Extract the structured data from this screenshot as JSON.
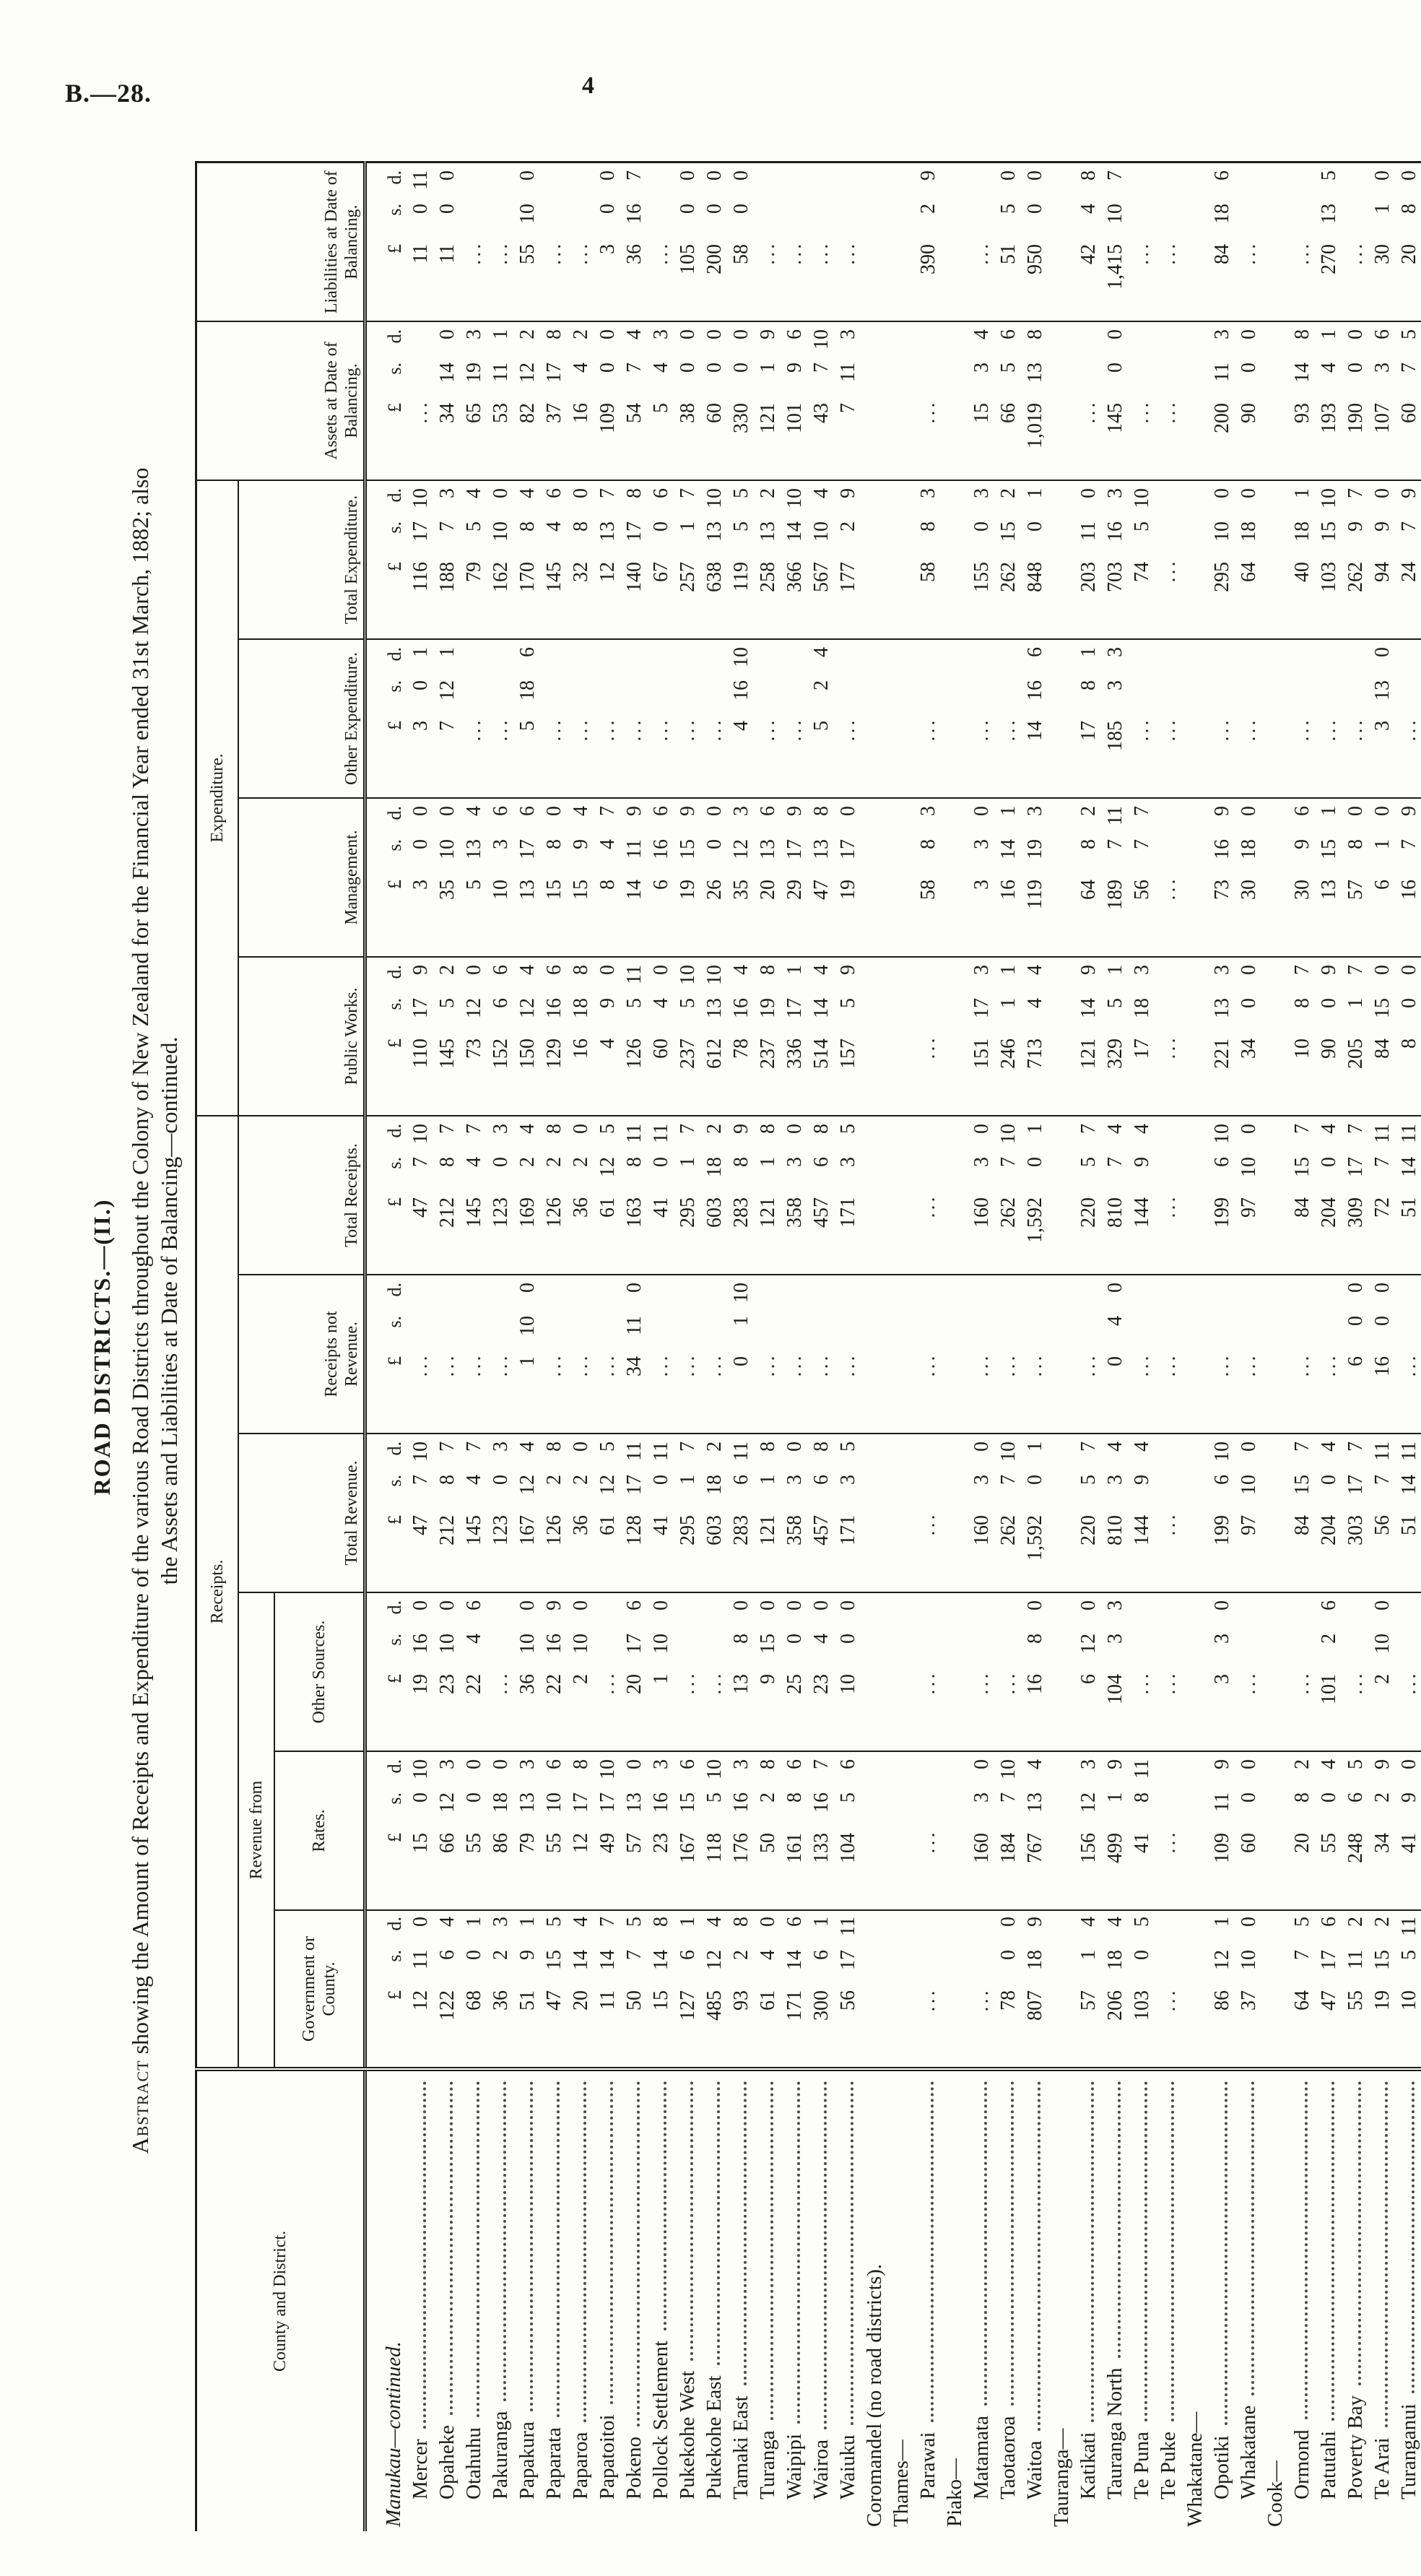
{
  "page": {
    "doc_ref": "B.—28.",
    "page_number": "4"
  },
  "heading": "ROAD DISTRICTS.—(II.)",
  "title": {
    "line1_smallcaps_word": "Abstract",
    "line1_rest": " showing the Amount of Receipts and Expenditure of the various Road Districts throughout the Colony of New Zealand for the Financial Year ended 31st March, 1882; also",
    "line2": "the Assets and Liabilities at Date of Balancing—continued."
  },
  "table": {
    "currency_symbols": [
      "£",
      "s.",
      "d."
    ],
    "empty_marker": "...",
    "headers": {
      "county": "County and District.",
      "receipts_group": "Receipts.",
      "expenditure_group": "Expenditure.",
      "revenue_from": "Revenue from",
      "columns": [
        "Government or County.",
        "Rates.",
        "Other Sources.",
        "Total Revenue.",
        "Receipts not Revenue.",
        "Total Receipts.",
        "Public Works.",
        "Management.",
        "Other Expenditure.",
        "Total Expenditure.",
        "Assets at Date of Balancing.",
        "Liabilities at Date of Balancing."
      ]
    },
    "rows": [
      {
        "type": "group",
        "label": "Manukau—continued.",
        "italic": true,
        "show_currency_row": true
      },
      {
        "type": "district",
        "name": "Mercer",
        "values": [
          "12 11 0",
          "15 0 10",
          "19 16 0",
          "47 7 10",
          "",
          "47 7 10",
          "110 17 9",
          "3 0 0",
          "3 0 1",
          "116 17 10",
          "",
          "11 0 11"
        ]
      },
      {
        "type": "district",
        "name": "Opaheke",
        "values": [
          "122 6 4",
          "66 12 3",
          "23 10 0",
          "212 8 7",
          "",
          "212 8 7",
          "145 5 2",
          "35 10 0",
          "7 12 1",
          "188 7 3",
          "34 14 0",
          "11 0 0"
        ]
      },
      {
        "type": "district",
        "name": "Otahuhu",
        "values": [
          "68 0 1",
          "55 0 0",
          "22 4 6",
          "145 4 7",
          "",
          "145 4 7",
          "73 12 0",
          "5 13 4",
          "",
          "79 5 4",
          "65 19 3",
          ""
        ]
      },
      {
        "type": "district",
        "name": "Pakuranga",
        "values": [
          "36 2 3",
          "86 18 0",
          "",
          "123 0 3",
          "",
          "123 0 3",
          "152 6 6",
          "10 3 6",
          "",
          "162 10 0",
          "53 11 1",
          ""
        ]
      },
      {
        "type": "district",
        "name": "Papakura",
        "values": [
          "51 9 1",
          "79 13 3",
          "36 10 0",
          "167 12 4",
          "1 10 0",
          "169 2 4",
          "150 12 4",
          "13 17 6",
          "5 18 6",
          "170 8 4",
          "82 12 2",
          "55 10 0"
        ]
      },
      {
        "type": "district",
        "name": "Paparata",
        "values": [
          "47 15 5",
          "55 10 6",
          "22 16 9",
          "126 2 8",
          "",
          "126 2 8",
          "129 16 6",
          "15 8 0",
          "",
          "145 4 6",
          "37 17 8",
          ""
        ]
      },
      {
        "type": "district",
        "name": "Paparoa",
        "values": [
          "20 14 4",
          "12 17 8",
          "2 10 0",
          "36 2 0",
          "",
          "36 2 0",
          "16 18 8",
          "15 9 4",
          "",
          "32 8 0",
          "16 4 2",
          ""
        ]
      },
      {
        "type": "district",
        "name": "Papatoitoi",
        "values": [
          "11 14 7",
          "49 17 10",
          "",
          "61 12 5",
          "",
          "61 12 5",
          "4 9 0",
          "8 4 7",
          "",
          "12 13 7",
          "109 0 0",
          "3 0 0"
        ]
      },
      {
        "type": "district",
        "name": "Pokeno",
        "values": [
          "50 7 5",
          "57 13 0",
          "20 17 6",
          "128 17 11",
          "34 11 0",
          "163 8 11",
          "126 5 11",
          "14 11 9",
          "",
          "140 17 8",
          "54 7 4",
          "36 16 7"
        ]
      },
      {
        "type": "district",
        "name": "Pollock Settlement",
        "values": [
          "15 14 8",
          "23 16 3",
          "1 10 0",
          "41 0 11",
          "",
          "41 0 11",
          "60 4 0",
          "6 16 6",
          "",
          "67 0 6",
          "5 4 3",
          ""
        ]
      },
      {
        "type": "district",
        "name": "Pukekohe West",
        "values": [
          "127 6 1",
          "167 15 6",
          "",
          "295 1 7",
          "",
          "295 1 7",
          "237 5 10",
          "19 15 9",
          "",
          "257 1 7",
          "38 0 0",
          "105 0 0"
        ]
      },
      {
        "type": "district",
        "name": "Pukekohe East",
        "values": [
          "485 12 4",
          "118 5 10",
          "",
          "603 18 2",
          "",
          "603 18 2",
          "612 13 10",
          "26 0 0",
          "",
          "638 13 10",
          "60 0 0",
          "200 0 0"
        ]
      },
      {
        "type": "district",
        "name": "Tamaki East",
        "values": [
          "93 2 8",
          "176 16 3",
          "13 8 0",
          "283 6 11",
          "0 1 10",
          "283 8 9",
          "78 16 4",
          "35 12 3",
          "4 16 10",
          "119 5 5",
          "330 0 0",
          "58 0 0"
        ]
      },
      {
        "type": "district",
        "name": "Turanga",
        "values": [
          "61 4 0",
          "50 2 8",
          "9 15 0",
          "121 1 8",
          "",
          "121 1 8",
          "237 19 8",
          "20 13 6",
          "",
          "258 13 2",
          "121 1 9",
          ""
        ]
      },
      {
        "type": "district",
        "name": "Waipipi",
        "values": [
          "171 14 6",
          "161 8 6",
          "25 0 0",
          "358 3 0",
          "",
          "358 3 0",
          "336 17 1",
          "29 17 9",
          "",
          "366 14 10",
          "101 9 6",
          ""
        ]
      },
      {
        "type": "district",
        "name": "Wairoa",
        "values": [
          "300 6 1",
          "133 16 7",
          "23 4 0",
          "457 6 8",
          "",
          "457 6 8",
          "514 14 4",
          "47 13 8",
          "5 2 4",
          "567 10 4",
          "43 7 10",
          ""
        ]
      },
      {
        "type": "district",
        "name": "Waiuku",
        "values": [
          "56 17 11",
          "104 5 6",
          "10 0 0",
          "171 3 5",
          "",
          "171 3 5",
          "157 5 9",
          "19 17 0",
          "",
          "177 2 9",
          "7 11 3",
          ""
        ]
      },
      {
        "type": "note",
        "label": "Coromandel (no road districts)."
      },
      {
        "type": "group",
        "label": "Thames—"
      },
      {
        "type": "district",
        "name": "Parawai",
        "values": [
          "",
          "",
          "",
          "",
          "",
          "",
          "",
          "58 8 3",
          "",
          "58 8 3",
          "",
          "390 2 9"
        ]
      },
      {
        "type": "group",
        "label": "Piako—"
      },
      {
        "type": "district",
        "name": "Matamata",
        "values": [
          "",
          "160 3 0",
          "",
          "160 3 0",
          "",
          "160 3 0",
          "151 17 3",
          "3 3 0",
          "",
          "155 0 3",
          "15 3 4",
          ""
        ]
      },
      {
        "type": "district",
        "name": "Taotaoroa",
        "values": [
          "78 0 0",
          "184 7 10",
          "",
          "262 7 10",
          "",
          "262 7 10",
          "246 1 1",
          "16 14 1",
          "",
          "262 15 2",
          "66 5 6",
          "51 5 0"
        ]
      },
      {
        "type": "district",
        "name": "Waitoa",
        "values": [
          "807 18 9",
          "767 13 4",
          "16 8 0",
          "1,592 0 1",
          "",
          "1,592 0 1",
          "713 4 4",
          "119 19 3",
          "14 16 6",
          "848 0 1",
          "1,019 13 8",
          "950 0 0"
        ]
      },
      {
        "type": "group",
        "label": "Tauranga—"
      },
      {
        "type": "district",
        "name": "Katikati",
        "values": [
          "57 1 4",
          "156 12 3",
          "6 12 0",
          "220 5 7",
          "",
          "220 5 7",
          "121 14 9",
          "64 8 2",
          "17 8 1",
          "203 11 0",
          "",
          "42 4 8"
        ]
      },
      {
        "type": "district",
        "name": "Tauranga North",
        "values": [
          "206 18 4",
          "499 1 9",
          "104 3 3",
          "810 3 4",
          "0 4 0",
          "810 7 4",
          "329 5 1",
          "189 7 11",
          "185 3 3",
          "703 16 3",
          "145 0 0",
          "1,415 10 7"
        ]
      },
      {
        "type": "district",
        "name": "Te Puna",
        "values": [
          "103 0 5",
          "41 8 11",
          "",
          "144 9 4",
          "",
          "144 9 4",
          "17 18 3",
          "56 7 7",
          "",
          "74 5 10",
          "",
          ""
        ]
      },
      {
        "type": "district",
        "name": "Te Puke",
        "values": [
          "",
          "",
          "",
          "",
          "",
          "",
          "",
          "",
          "",
          "",
          "",
          ""
        ]
      },
      {
        "type": "group",
        "label": "Whakatane—"
      },
      {
        "type": "district",
        "name": "Opotiki",
        "values": [
          "86 12 1",
          "109 11 9",
          "3 3 0",
          "199 6 10",
          "",
          "199 6 10",
          "221 13 3",
          "73 16 9",
          "",
          "295 10 0",
          "200 11 3",
          "84 18 6"
        ]
      },
      {
        "type": "district",
        "name": "Whakatane",
        "values": [
          "37 10 0",
          "60 0 0",
          "",
          "97 10 0",
          "",
          "97 10 0",
          "34 0 0",
          "30 18 0",
          "",
          "64 18 0",
          "90 0 0",
          ""
        ]
      },
      {
        "type": "group",
        "label": "Cook—"
      },
      {
        "type": "district",
        "name": "Ormond",
        "values": [
          "64 7 5",
          "20 8 2",
          "",
          "84 15 7",
          "",
          "84 15 7",
          "10 8 7",
          "30 9 6",
          "",
          "40 18 1",
          "93 14 8",
          ""
        ]
      },
      {
        "type": "district",
        "name": "Patutahi",
        "values": [
          "47 17 6",
          "55 0 4",
          "101 2 6",
          "204 0 4",
          "",
          "204 0 4",
          "90 0 9",
          "13 15 1",
          "",
          "103 15 10",
          "193 4 1",
          "270 13 5"
        ]
      },
      {
        "type": "district",
        "name": "Poverty Bay",
        "values": [
          "55 11 2",
          "248 6 5",
          "",
          "303 17 7",
          "6 0 0",
          "309 17 7",
          "205 1 7",
          "57 8 0",
          "",
          "262 9 7",
          "190 0 0",
          ""
        ]
      },
      {
        "type": "district",
        "name": "Te Arai",
        "values": [
          "19 15 2",
          "34 2 9",
          "2 10 0",
          "56 7 11",
          "16 0 0",
          "72 7 11",
          "84 15 0",
          "6 1 0",
          "3 13 0",
          "94 9 0",
          "107 3 6",
          "30 1 0"
        ]
      },
      {
        "type": "district",
        "name": "Turanganui",
        "values": [
          "10 5 11",
          "41 9 0",
          "",
          "51 14 11",
          "",
          "51 14 11",
          "8 0 0",
          "16 7 9",
          "",
          "24 7 9",
          "60 7 5",
          "20 8 0"
        ]
      }
    ]
  }
}
